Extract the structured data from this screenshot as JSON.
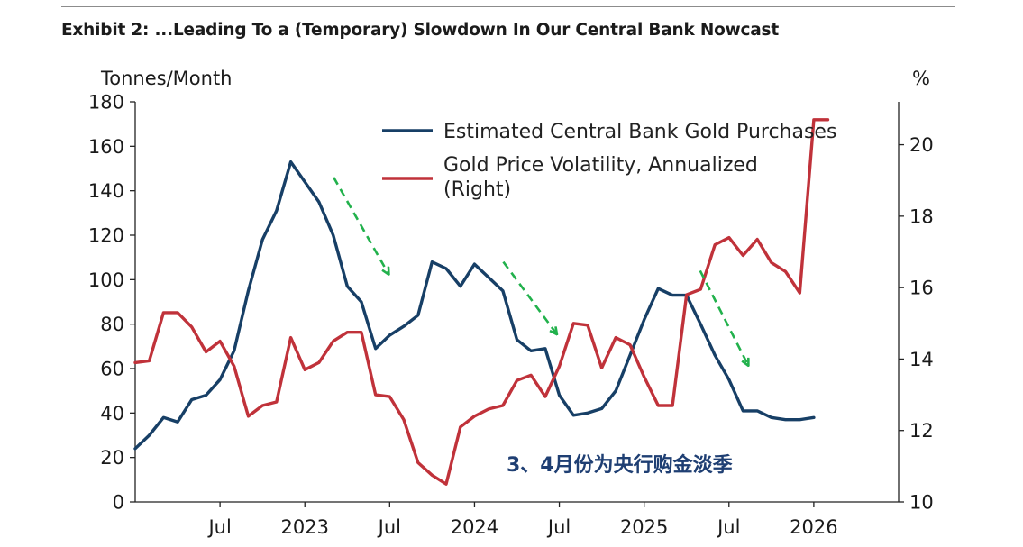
{
  "exhibit": {
    "title": "Exhibit 2: ...Leading To a (Temporary) Slowdown In Our Central Bank Nowcast"
  },
  "chart_data": {
    "type": "line",
    "title": "Exhibit 2: ...Leading To a (Temporary) Slowdown In Our Central Bank Nowcast",
    "ylabel": "Tonnes/Month",
    "y2label": "%",
    "ylim": [
      0,
      180
    ],
    "y2lim": [
      10,
      21.2
    ],
    "yticks": [
      0,
      20,
      40,
      60,
      80,
      100,
      120,
      140,
      160,
      180
    ],
    "y2ticks": [
      10,
      12,
      14,
      16,
      18,
      20
    ],
    "xlim": [
      2022.0,
      2026.5
    ],
    "xticks": [
      {
        "value": 2022.5,
        "label": "Jul"
      },
      {
        "value": 2023.0,
        "label": "2023"
      },
      {
        "value": 2023.5,
        "label": "Jul"
      },
      {
        "value": 2024.0,
        "label": "2024"
      },
      {
        "value": 2024.5,
        "label": "Jul"
      },
      {
        "value": 2025.0,
        "label": "2025"
      },
      {
        "value": 2025.5,
        "label": "Jul"
      },
      {
        "value": 2026.0,
        "label": "2026"
      }
    ],
    "grid": false,
    "legend_position": "top-right",
    "series": [
      {
        "name": "Estimated Central Bank Gold Purchases",
        "axis": "left",
        "color": "#173f66",
        "x": [
          2022.0,
          2022.083,
          2022.167,
          2022.25,
          2022.333,
          2022.417,
          2022.5,
          2022.583,
          2022.667,
          2022.75,
          2022.833,
          2022.917,
          2023.0,
          2023.083,
          2023.167,
          2023.25,
          2023.333,
          2023.417,
          2023.5,
          2023.583,
          2023.667,
          2023.75,
          2023.833,
          2023.917,
          2024.0,
          2024.083,
          2024.167,
          2024.25,
          2024.333,
          2024.417,
          2024.5,
          2024.583,
          2024.667,
          2024.75,
          2024.833,
          2024.917,
          2025.0,
          2025.083,
          2025.167,
          2025.25,
          2025.333,
          2025.417,
          2025.5,
          2025.583,
          2025.667,
          2025.75,
          2025.833,
          2025.917,
          2026.0
        ],
        "values": [
          24,
          30,
          38,
          36,
          46,
          48,
          55,
          68,
          95,
          118,
          131,
          153,
          144,
          135,
          120,
          97,
          90,
          69,
          75,
          79,
          84,
          108,
          105,
          97,
          107,
          101,
          95,
          73,
          68,
          69,
          48,
          39,
          40,
          42,
          50,
          66,
          82,
          96,
          93,
          93,
          80,
          66,
          55,
          41,
          41,
          38,
          37,
          37,
          38
        ]
      },
      {
        "name": "Gold Price Volatility, Annualized (Right)",
        "axis": "right",
        "color": "#c0323a",
        "x": [
          2022.0,
          2022.083,
          2022.167,
          2022.25,
          2022.333,
          2022.417,
          2022.5,
          2022.583,
          2022.667,
          2022.75,
          2022.833,
          2022.917,
          2023.0,
          2023.083,
          2023.167,
          2023.25,
          2023.333,
          2023.417,
          2023.5,
          2023.583,
          2023.667,
          2023.75,
          2023.833,
          2023.917,
          2024.0,
          2024.083,
          2024.167,
          2024.25,
          2024.333,
          2024.417,
          2024.5,
          2024.583,
          2024.667,
          2024.75,
          2024.833,
          2024.917,
          2025.0,
          2025.083,
          2025.167,
          2025.25,
          2025.333,
          2025.417,
          2025.5,
          2025.583,
          2025.667,
          2025.75,
          2025.833,
          2025.917,
          2026.0,
          2026.083
        ],
        "values": [
          13.9,
          13.95,
          15.3,
          15.3,
          14.9,
          14.2,
          14.5,
          13.8,
          12.4,
          12.7,
          12.8,
          14.6,
          13.7,
          13.9,
          14.5,
          14.75,
          14.75,
          13.0,
          12.95,
          12.3,
          11.1,
          10.75,
          10.5,
          12.1,
          12.4,
          12.6,
          12.7,
          13.4,
          13.55,
          12.95,
          13.8,
          15.0,
          14.95,
          13.75,
          14.6,
          14.4,
          13.5,
          12.7,
          12.7,
          15.8,
          15.95,
          17.2,
          17.4,
          16.9,
          17.35,
          16.7,
          16.45,
          15.85,
          20.7,
          20.7
        ]
      }
    ],
    "annotations": [
      {
        "text": "3、4月份为央行购金淡季",
        "color": "#1f3f73"
      },
      {
        "type": "arrow",
        "color": "#22b14c",
        "style": "dashed",
        "from": [
          2023.17,
          146
        ],
        "to": [
          2023.49,
          103
        ]
      },
      {
        "type": "arrow",
        "color": "#22b14c",
        "style": "dashed",
        "from": [
          2024.17,
          108
        ],
        "to": [
          2024.48,
          76
        ]
      },
      {
        "type": "arrow",
        "color": "#22b14c",
        "style": "dashed",
        "from": [
          2025.33,
          104
        ],
        "to": [
          2025.61,
          62
        ]
      }
    ]
  }
}
